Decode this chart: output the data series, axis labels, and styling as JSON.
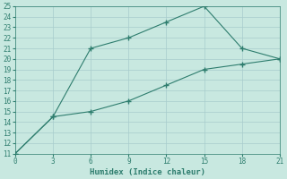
{
  "xlabel": "Humidex (Indice chaleur)",
  "line1_x": [
    0,
    3,
    6,
    9,
    12,
    15,
    18,
    21
  ],
  "line1_y": [
    11,
    14.5,
    15.0,
    16.0,
    17.5,
    19.0,
    19.5,
    20.0
  ],
  "line2_x": [
    0,
    3,
    6,
    9,
    12,
    15,
    18,
    21
  ],
  "line2_y": [
    11,
    14.5,
    21.0,
    22.0,
    23.5,
    25.0,
    21.0,
    20.0
  ],
  "line_color": "#2e7d6e",
  "bg_color": "#c8e8e0",
  "grid_color": "#a8cccc",
  "xlim": [
    0,
    21
  ],
  "ylim": [
    11,
    25
  ],
  "xticks": [
    0,
    3,
    6,
    9,
    12,
    15,
    18,
    21
  ],
  "yticks": [
    11,
    12,
    13,
    14,
    15,
    16,
    17,
    18,
    19,
    20,
    21,
    22,
    23,
    24,
    25
  ]
}
